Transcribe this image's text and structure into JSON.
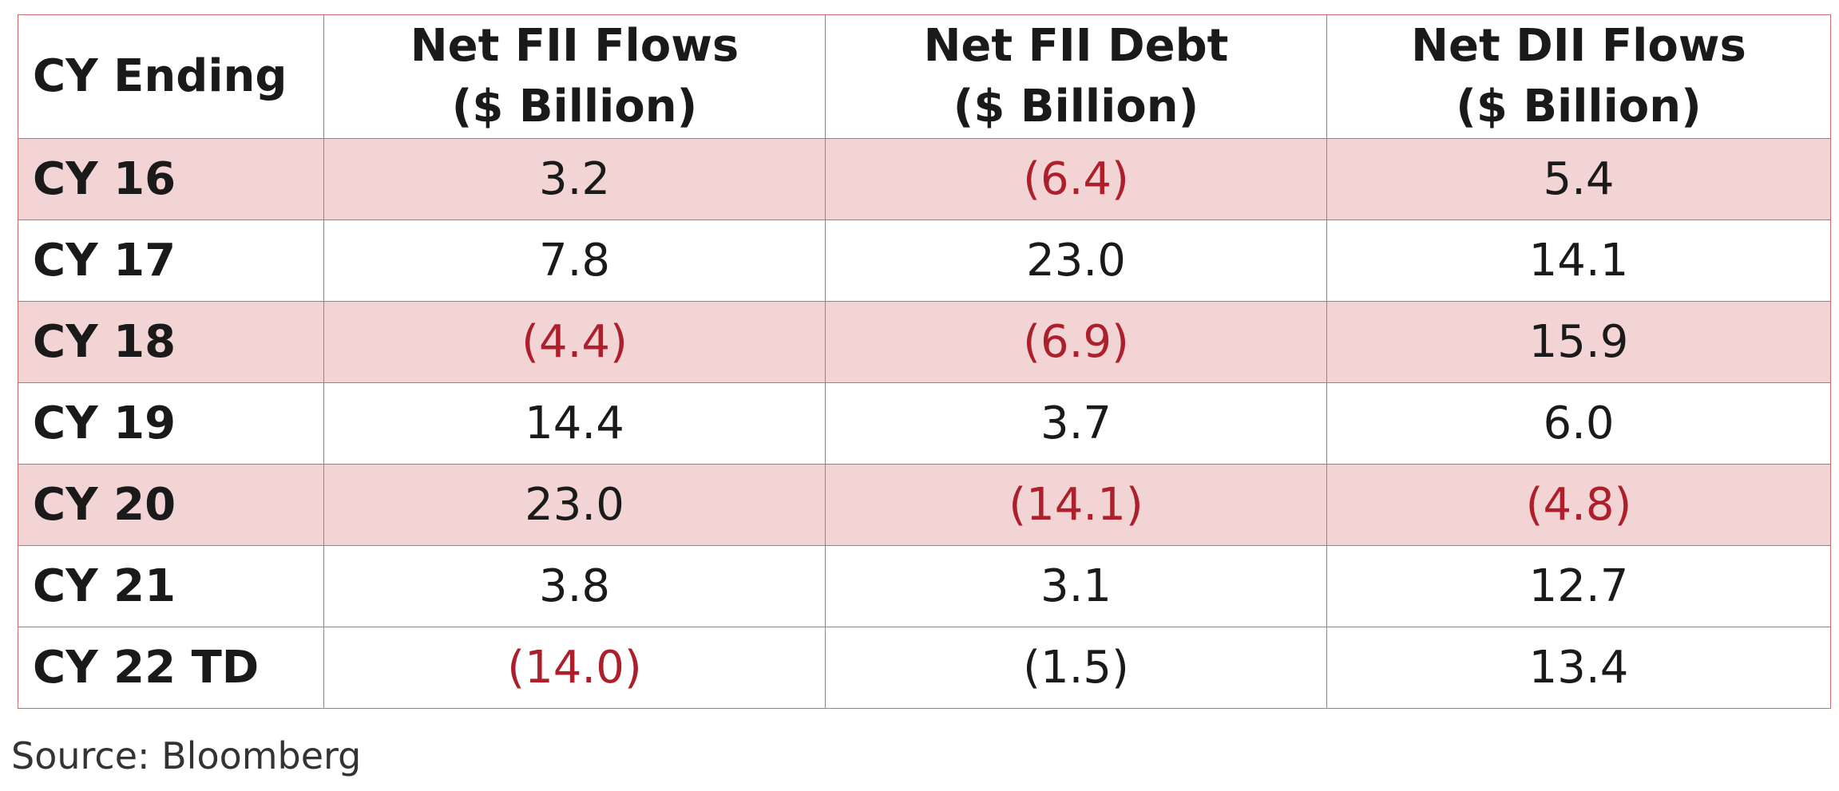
{
  "table": {
    "headers": [
      {
        "line1": "CY Ending",
        "line2": ""
      },
      {
        "line1": "Net FII Flows",
        "line2": "($ Billion)"
      },
      {
        "line1": "Net FII Debt",
        "line2": "($ Billion)"
      },
      {
        "line1": "Net DII Flows",
        "line2": "($ Billion)"
      }
    ],
    "rows": [
      {
        "label": "CY 16",
        "c1": "3.2",
        "c2": "(6.4)",
        "c3": "5.4"
      },
      {
        "label": "CY 17",
        "c1": "7.8",
        "c2": "23.0",
        "c3": "14.1"
      },
      {
        "label": "CY 18",
        "c1": "(4.4)",
        "c2": "(6.9)",
        "c3": "15.9"
      },
      {
        "label": "CY 19",
        "c1": "14.4",
        "c2": "3.7",
        "c3": "6.0"
      },
      {
        "label": "CY 20",
        "c1": "23.0",
        "c2": "(14.1)",
        "c3": "(4.8)"
      },
      {
        "label": "CY 21",
        "c1": "3.8",
        "c2": "3.1",
        "c3": "12.7"
      },
      {
        "label": "CY 22 TD",
        "c1": "(14.0)",
        "c2": "(1.5)",
        "c3": "13.4"
      }
    ]
  },
  "colors": {
    "negative": "#ad1f2b",
    "row_shade": "#f2d4d5",
    "border": "#cd6a6c"
  },
  "source": "Source: Bloomberg"
}
